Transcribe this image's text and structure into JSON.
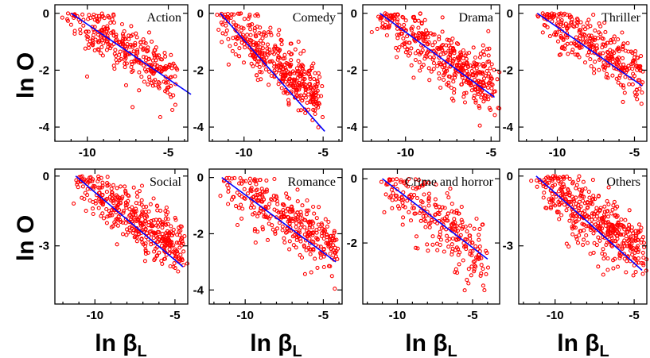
{
  "chart_data": {
    "type": "scatter",
    "ylabel": "ln O",
    "xlabel_main": "ln β",
    "xlabel_sub": "L",
    "colors": {
      "points": "#ff0000",
      "fit": "#0000ff",
      "frame": "#000000"
    },
    "panels": [
      {
        "title": "Action",
        "xticks": [
          -10,
          -5
        ],
        "yticks": [
          0,
          -2,
          -4
        ],
        "xlim": [
          -12,
          -3.8
        ],
        "ylim": [
          -4.5,
          0.3
        ],
        "fit": {
          "x": [
            -11,
            -3.6
          ],
          "y": [
            0,
            -2.85
          ]
        },
        "cloud": {
          "x_range": [
            -11.2,
            -4.8
          ],
          "y_center_at_x": [
            [
              -11,
              -0.05
            ],
            [
              -5,
              -2.2
            ]
          ],
          "spread": 0.45,
          "n": 320
        }
      },
      {
        "title": "Comedy",
        "xticks": [
          -10,
          -5
        ],
        "yticks": [
          0,
          -2,
          -4
        ],
        "xlim": [
          -12.2,
          -3.8
        ],
        "ylim": [
          -4.5,
          0.3
        ],
        "fit": {
          "x": [
            -11.5,
            -4.9
          ],
          "y": [
            0,
            -4.15
          ]
        },
        "cloud": {
          "x_range": [
            -11.5,
            -5.2
          ],
          "y_center_at_x": [
            [
              -11.5,
              -0.05
            ],
            [
              -5.5,
              -2.9
            ]
          ],
          "spread": 0.5,
          "n": 420
        }
      },
      {
        "title": "Drama",
        "xticks": [
          -10,
          -5
        ],
        "yticks": [
          0,
          -2,
          -4
        ],
        "xlim": [
          -12.5,
          -4.5
        ],
        "ylim": [
          -4.5,
          0.3
        ],
        "fit": {
          "x": [
            -11.5,
            -4.8
          ],
          "y": [
            0,
            -2.95
          ]
        },
        "cloud": {
          "x_range": [
            -11.8,
            -4.8
          ],
          "y_center_at_x": [
            [
              -11.5,
              -0.05
            ],
            [
              -5,
              -2.6
            ]
          ],
          "spread": 0.5,
          "n": 440
        }
      },
      {
        "title": "Thriller",
        "xticks": [
          -10,
          -5
        ],
        "yticks": [
          0,
          -2,
          -4
        ],
        "xlim": [
          -12.5,
          -4.2
        ],
        "ylim": [
          -4.5,
          0.3
        ],
        "fit": {
          "x": [
            -11.3,
            -4.5
          ],
          "y": [
            0,
            -2.55
          ]
        },
        "cloud": {
          "x_range": [
            -11.3,
            -4.5
          ],
          "y_center_at_x": [
            [
              -11.3,
              -0.05
            ],
            [
              -5,
              -2.0
            ]
          ],
          "spread": 0.45,
          "n": 320
        }
      },
      {
        "title": "Social",
        "xticks": [
          -10,
          -5
        ],
        "yticks": [
          0,
          -3
        ],
        "xlim": [
          -12.5,
          -4.2
        ],
        "ylim": [
          -5.5,
          0.3
        ],
        "fit": {
          "x": [
            -11.2,
            -4.5
          ],
          "y": [
            0,
            -3.9
          ]
        },
        "cloud": {
          "x_range": [
            -11.2,
            -4.5
          ],
          "y_center_at_x": [
            [
              -11.2,
              -0.05
            ],
            [
              -5,
              -2.9
            ]
          ],
          "spread": 0.6,
          "n": 420
        }
      },
      {
        "title": "Romance",
        "xticks": [
          -10,
          -5
        ],
        "yticks": [
          0,
          -2,
          -4
        ],
        "xlim": [
          -12.3,
          -3.8
        ],
        "ylim": [
          -4.5,
          0.3
        ],
        "fit": {
          "x": [
            -11.5,
            -4.2
          ],
          "y": [
            0,
            -3.0
          ]
        },
        "cloud": {
          "x_range": [
            -11.5,
            -4.2
          ],
          "y_center_at_x": [
            [
              -11.5,
              -0.05
            ],
            [
              -5,
              -2.3
            ]
          ],
          "spread": 0.5,
          "n": 340
        }
      },
      {
        "title": "Crime and horror",
        "xticks": [
          -10,
          -5
        ],
        "yticks": [
          0,
          -2
        ],
        "xlim": [
          -12.3,
          -3.2
        ],
        "ylim": [
          -3.9,
          0.3
        ],
        "fit": {
          "x": [
            -11,
            -4
          ],
          "y": [
            0,
            -2.5
          ]
        },
        "cloud": {
          "x_range": [
            -11,
            -4.2
          ],
          "y_center_at_x": [
            [
              -11,
              -0.05
            ],
            [
              -5,
              -2.2
            ]
          ],
          "spread": 0.55,
          "n": 260
        }
      },
      {
        "title": "Others",
        "xticks": [
          -10,
          -5
        ],
        "yticks": [
          0,
          -3
        ],
        "xlim": [
          -12.3,
          -4.2
        ],
        "ylim": [
          -5.5,
          0.3
        ],
        "fit": {
          "x": [
            -11.2,
            -4.5
          ],
          "y": [
            0,
            -4.05
          ]
        },
        "cloud": {
          "x_range": [
            -11.2,
            -4.5
          ],
          "y_center_at_x": [
            [
              -11.2,
              -0.05
            ],
            [
              -5,
              -3.0
            ]
          ],
          "spread": 0.6,
          "n": 440
        }
      }
    ]
  }
}
